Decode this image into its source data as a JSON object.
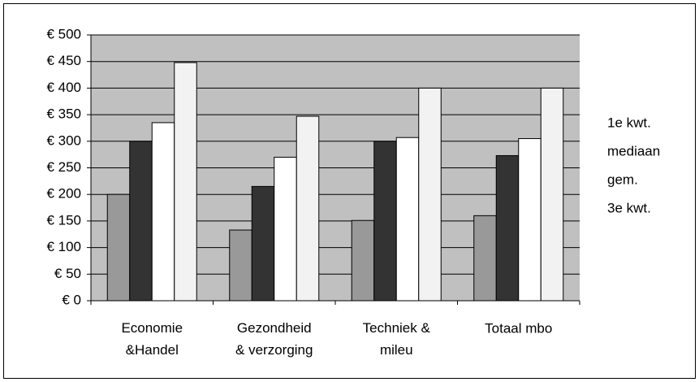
{
  "chart_data": {
    "type": "bar",
    "categories": [
      "Economie\n&Handel",
      "Gezondheid\n& verzorging",
      "Techniek &\nmileu",
      "Totaal mbo"
    ],
    "series": [
      {
        "name": "1e kwt.",
        "color": "#999999",
        "values": [
          200,
          133,
          151,
          160
        ]
      },
      {
        "name": "mediaan",
        "color": "#333333",
        "values": [
          300,
          215,
          300,
          273
        ]
      },
      {
        "name": "gem.",
        "color": "#ffffff",
        "values": [
          335,
          270,
          307,
          305
        ]
      },
      {
        "name": "3e kwt.",
        "color": "#f2f2f2",
        "values": [
          448,
          347,
          400,
          400
        ]
      }
    ],
    "ylim": [
      0,
      500
    ],
    "yticks": [
      {
        "value": 0,
        "label": "€ 0"
      },
      {
        "value": 50,
        "label": "€ 50"
      },
      {
        "value": 100,
        "label": "€ 100"
      },
      {
        "value": 150,
        "label": "€ 150"
      },
      {
        "value": 200,
        "label": "€ 200"
      },
      {
        "value": 250,
        "label": "€ 250"
      },
      {
        "value": 300,
        "label": "€ 300"
      },
      {
        "value": 350,
        "label": "€ 350"
      },
      {
        "value": 400,
        "label": "€ 400"
      },
      {
        "value": 450,
        "label": "€ 450"
      },
      {
        "value": 500,
        "label": "€ 500"
      }
    ],
    "grid": true,
    "legend": "right",
    "plot_background": "#c0c0c0"
  }
}
